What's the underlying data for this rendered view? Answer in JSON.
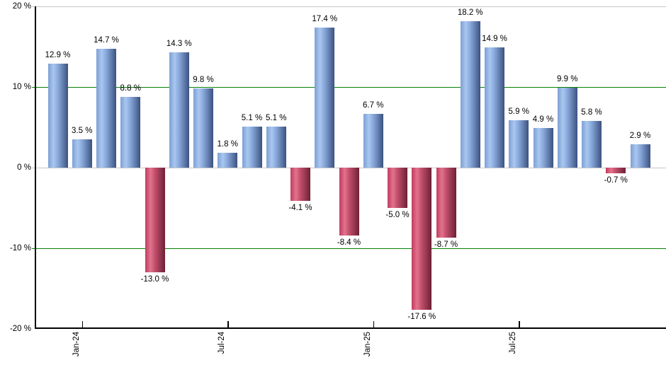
{
  "chart_data": {
    "type": "bar",
    "title": "",
    "xlabel": "",
    "ylabel": "",
    "ylim": [
      -20,
      20
    ],
    "grid": "horizontal",
    "legend": "none",
    "values": [
      12.9,
      3.5,
      14.7,
      8.8,
      -13.0,
      14.3,
      9.8,
      1.8,
      5.1,
      5.1,
      -4.1,
      17.4,
      -8.4,
      6.7,
      -5.0,
      -17.6,
      -8.7,
      18.2,
      14.9,
      5.9,
      4.9,
      9.9,
      5.8,
      -0.7,
      2.9
    ],
    "bar_labels": [
      "12.9 %",
      "3.5 %",
      "14.7 %",
      "8.8 %",
      "-13.0 %",
      "14.3 %",
      "9.8 %",
      "1.8 %",
      "5.1 %",
      "5.1 %",
      "-4.1 %",
      "17.4 %",
      "-8.4 %",
      "6.7 %",
      "-5.0 %",
      "-17.6 %",
      "-8.7 %",
      "18.2 %",
      "14.9 %",
      "5.9 %",
      "4.9 %",
      "9.9 %",
      "5.8 %",
      "-0.7 %",
      "2.9 %"
    ],
    "x_ticks": [
      {
        "index": 1,
        "label": "Jan-24"
      },
      {
        "index": 7,
        "label": "Jul-24"
      },
      {
        "index": 13,
        "label": "Jan-25"
      },
      {
        "index": 19,
        "label": "Jul-25"
      }
    ],
    "y_ticks": [
      {
        "value": 20,
        "label": "20 %"
      },
      {
        "value": 10,
        "label": "10 %"
      },
      {
        "value": 0,
        "label": "0 %"
      },
      {
        "value": -10,
        "label": "-10 %"
      },
      {
        "value": -20,
        "label": "-20 %"
      }
    ],
    "gridlines": [
      {
        "value": 20,
        "style": "gray"
      },
      {
        "value": 10,
        "style": "green"
      },
      {
        "value": 0,
        "style": "gray"
      },
      {
        "value": -10,
        "style": "green"
      }
    ],
    "colors": {
      "positive_bar_gradient": [
        "#7d9fd4",
        "#a9c7f0",
        "#87a7da",
        "#3c5280"
      ],
      "negative_bar_gradient": [
        "#c23b5e",
        "#e2738e",
        "#c14e6b",
        "#6d2136"
      ],
      "gridline_green": "#067f06",
      "gridline_gray": "#c6c6c6",
      "axis_color": "#000000",
      "label_color": "#000000",
      "background": "#ffffff"
    }
  }
}
